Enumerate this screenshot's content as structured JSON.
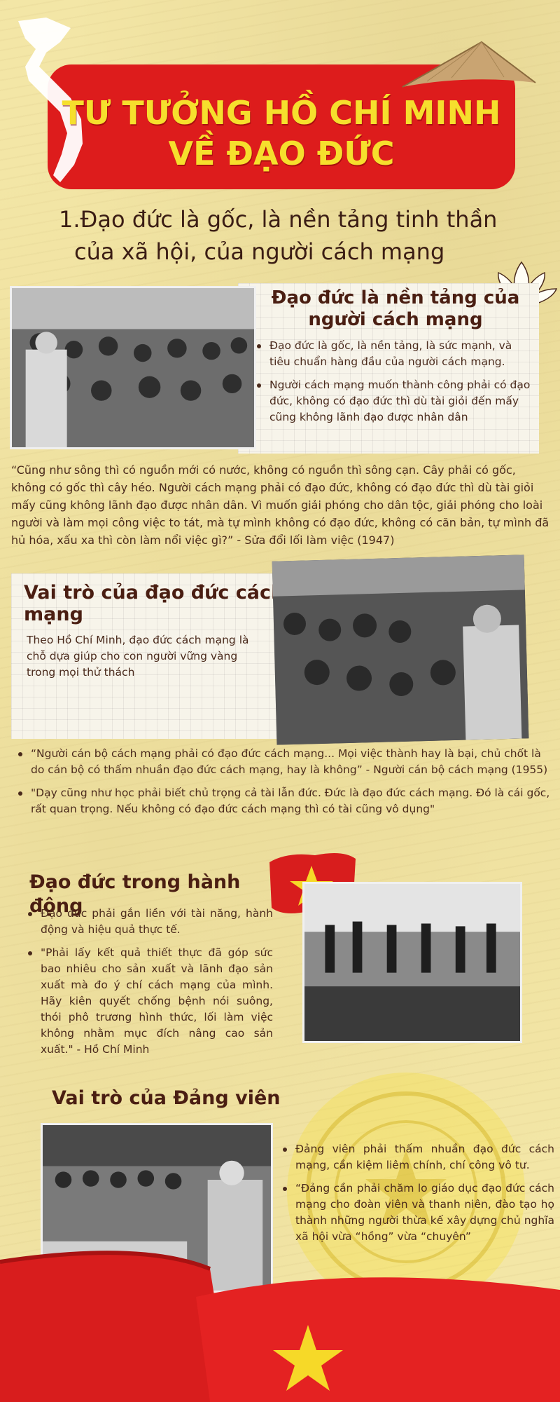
{
  "header": {
    "title_line1": "TƯ TƯỞNG HỒ CHÍ MINH",
    "title_line2": "VỀ ĐẠO ĐỨC"
  },
  "section1": {
    "heading_line1": "1.Đạo đức là gốc, là nền tảng tinh thần",
    "heading_line2": "của xã hội, của người cách mạng",
    "card": {
      "title_line1": "Đạo đức là nền tảng của",
      "title_line2": "người cách mạng",
      "bullets": [
        "Đạo đức là gốc, là nền tảng, là sức mạnh, và tiêu chuẩn hàng đầu của người cách mạng.",
        "Người cách mạng muốn thành công phải có đạo đức, không có đạo đức thì dù tài giỏi đến mấy cũng không lãnh đạo được nhân dân"
      ]
    },
    "quote": "“Cũng như sông thì có nguồn mới có nước, không có nguồn thì sông cạn. Cây phải có gốc, không có gốc thì cây héo. Người cách mạng phải có đạo đức, không có đạo đức thì dù tài giỏi mấy cũng không lãnh đạo được nhân dân. Vì muốn giải phóng cho dân tộc, giải phóng cho loài người và làm mọi công việc to tát, mà tự mình không có đạo đức, không có căn bản, tự mình đã hủ hóa, xấu xa thì còn làm nổi việc gì?” - Sửa đổi lối làm việc (1947)"
  },
  "section2": {
    "title_line1": "Vai trò của đạo đức cách",
    "title_line2": "mạng",
    "text": "Theo Hồ Chí Minh, đạo đức cách mạng là chỗ dựa giúp cho con người vững vàng trong mọi thử thách",
    "bullets": [
      "“Người cán bộ cách mạng phải có đạo đức cách mạng... Mọi việc thành hay là bại, chủ chốt là do cán bộ có thấm nhuần đạo đức cách mạng, hay là không” - Người cán bộ cách mạng (1955)",
      "\"Dạy cũng như học phải biết chủ trọng cả tài lẫn đức. Đức là đạo đức cách mạng. Đó là cái gốc, rất quan trọng. Nếu không có đạo đức cách mạng thì có tài cũng vô dụng\""
    ]
  },
  "section3": {
    "title": "Đạo đức trong hành động",
    "bullets": [
      "Đạo đức phải gắn liền với tài năng, hành động và hiệu quả thực tế.",
      "\"Phải lấy kết quả thiết thực đã góp sức bao nhiêu cho sản xuất và lãnh đạo sản xuất mà đo ý chí cách mạng của mình. Hãy kiên quyết chống bệnh nói suông, thói phô trương hình thức, lối làm việc không nhằm mục đích nâng cao sản xuất.\" - Hồ Chí Minh"
    ]
  },
  "section4": {
    "title": "Vai trò của Đảng viên",
    "bullets": [
      "Đảng viên phải thấm nhuần đạo đức cách mạng, cần kiệm liêm chính, chí công vô tư.",
      "“Đảng cần phải chăm lo giáo dục đạo đức cách mạng cho đoàn viên và thanh niên, đào tạo họ thành những người thừa kế xây dựng chủ nghĩa xã hội vừa “hồng” vừa “chuyên”"
    ]
  },
  "colors": {
    "banner_red": "#dd1c1c",
    "title_yellow": "#f6df2d",
    "background": "#f3e6a6",
    "heading_brown": "#4a1e12"
  },
  "icons": [
    "vietnam-map-icon",
    "conical-hat-icon",
    "lotus-icon",
    "star-flag-icon",
    "seal-icon",
    "flag-icon"
  ]
}
